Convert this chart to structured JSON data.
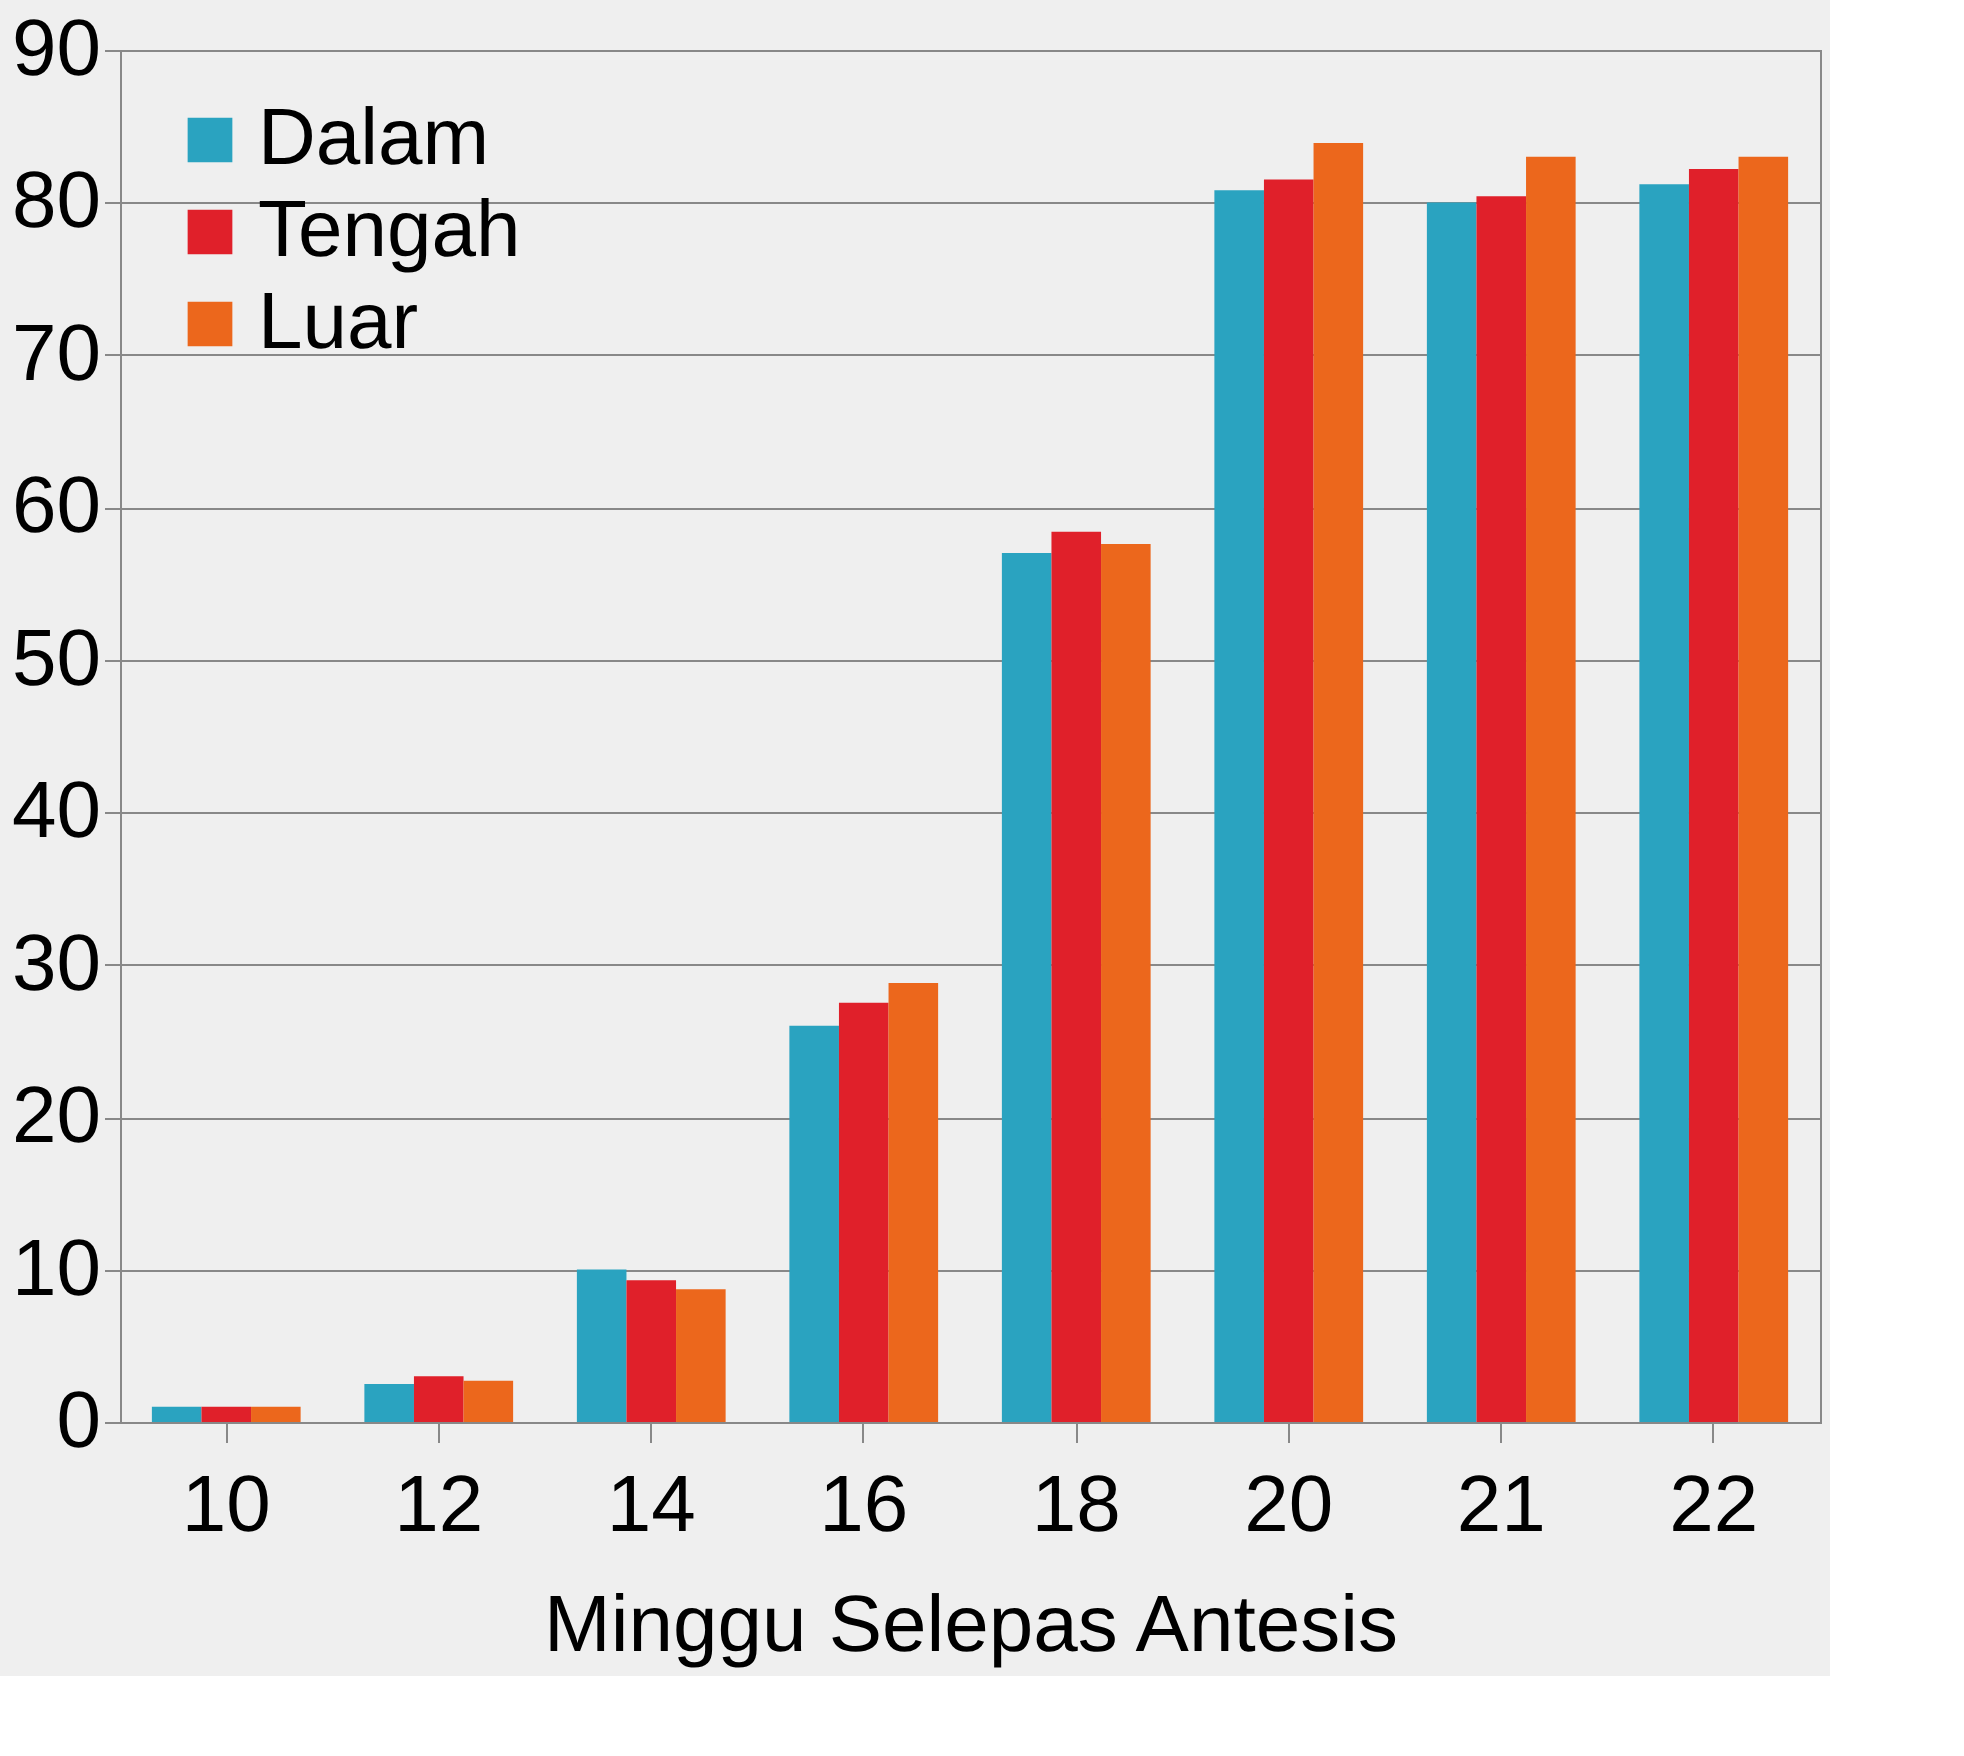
{
  "chart_data": {
    "type": "bar",
    "xlabel": "Minggu Selepas  Antesis",
    "categories": [
      "10",
      "12",
      "14",
      "16",
      "18",
      "20",
      "21",
      "22"
    ],
    "series": [
      {
        "name": "Dalam",
        "color": "#2aa3c0",
        "values": [
          1,
          2.5,
          10,
          26,
          57,
          80.8,
          80,
          81.2
        ]
      },
      {
        "name": "Tengah",
        "color": "#e0202a",
        "values": [
          1,
          3,
          9.3,
          27.5,
          58.4,
          81.5,
          80.4,
          82.2
        ]
      },
      {
        "name": "Luar",
        "color": "#ec671c",
        "values": [
          1,
          2.7,
          8.7,
          28.8,
          57.6,
          83.9,
          83,
          83
        ]
      }
    ],
    "ylim": [
      0,
      90
    ],
    "yticks": [
      0,
      10,
      20,
      30,
      40,
      50,
      60,
      70,
      80,
      90
    ],
    "grid": "y",
    "legend": "top left"
  }
}
